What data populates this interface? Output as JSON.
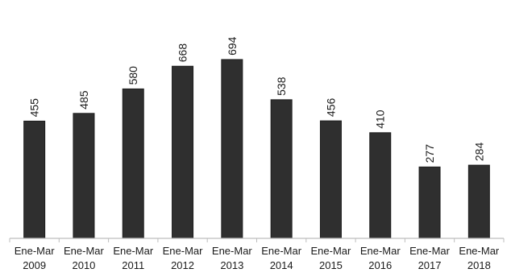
{
  "chart_data": {
    "type": "bar",
    "categories": [
      [
        "Ene-Mar",
        "2009"
      ],
      [
        "Ene-Mar",
        "2010"
      ],
      [
        "Ene-Mar",
        "2011"
      ],
      [
        "Ene-Mar",
        "2012"
      ],
      [
        "Ene-Mar",
        "2013"
      ],
      [
        "Ene-Mar",
        "2014"
      ],
      [
        "Ene-Mar",
        "2015"
      ],
      [
        "Ene-Mar",
        "2016"
      ],
      [
        "Ene-Mar",
        "2017"
      ],
      [
        "Ene-Mar",
        "2018"
      ]
    ],
    "values": [
      455,
      485,
      580,
      668,
      694,
      538,
      456,
      410,
      277,
      284
    ],
    "data_labels": [
      "455",
      "485",
      "580",
      "668",
      "694",
      "538",
      "456",
      "410",
      "277",
      "284"
    ],
    "ylim": [
      0,
      800
    ],
    "grid": false,
    "legend": "none",
    "bar_color": "#2f2f2f",
    "axis_color": "#bdbdbd",
    "data_label_rotation": "vertical"
  }
}
